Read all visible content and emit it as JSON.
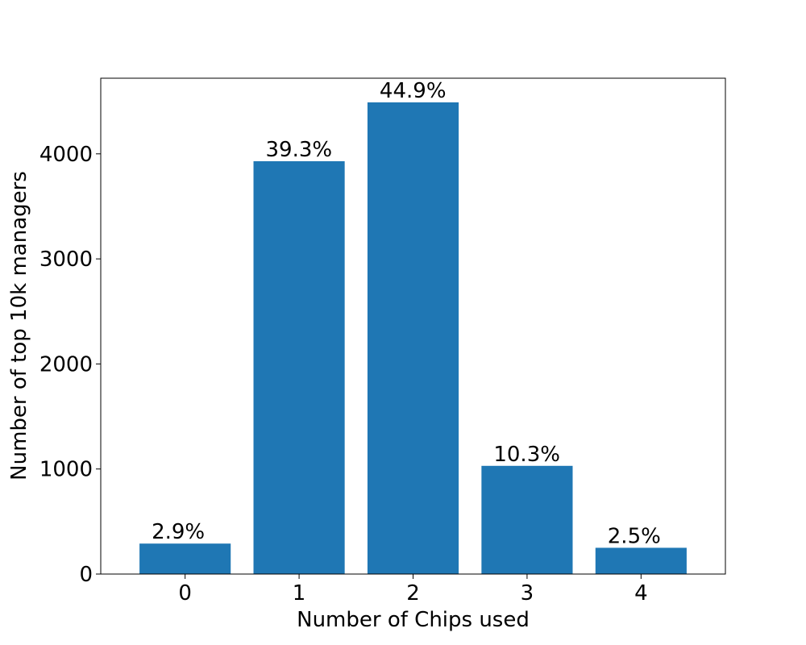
{
  "chart_data": {
    "type": "bar",
    "title": "",
    "xlabel": "Number of Chips used",
    "ylabel": "Number of top 10k managers",
    "categories": [
      "0",
      "1",
      "2",
      "3",
      "4"
    ],
    "values": [
      290,
      3930,
      4490,
      1030,
      250
    ],
    "data_labels": [
      "2.9%",
      "39.3%",
      "44.9%",
      "10.3%",
      "2.5%"
    ],
    "ylim": [
      0,
      4720
    ],
    "yticks": [
      0,
      1000,
      2000,
      3000,
      4000
    ],
    "grid": false,
    "bar_color": "#1f77b4"
  }
}
